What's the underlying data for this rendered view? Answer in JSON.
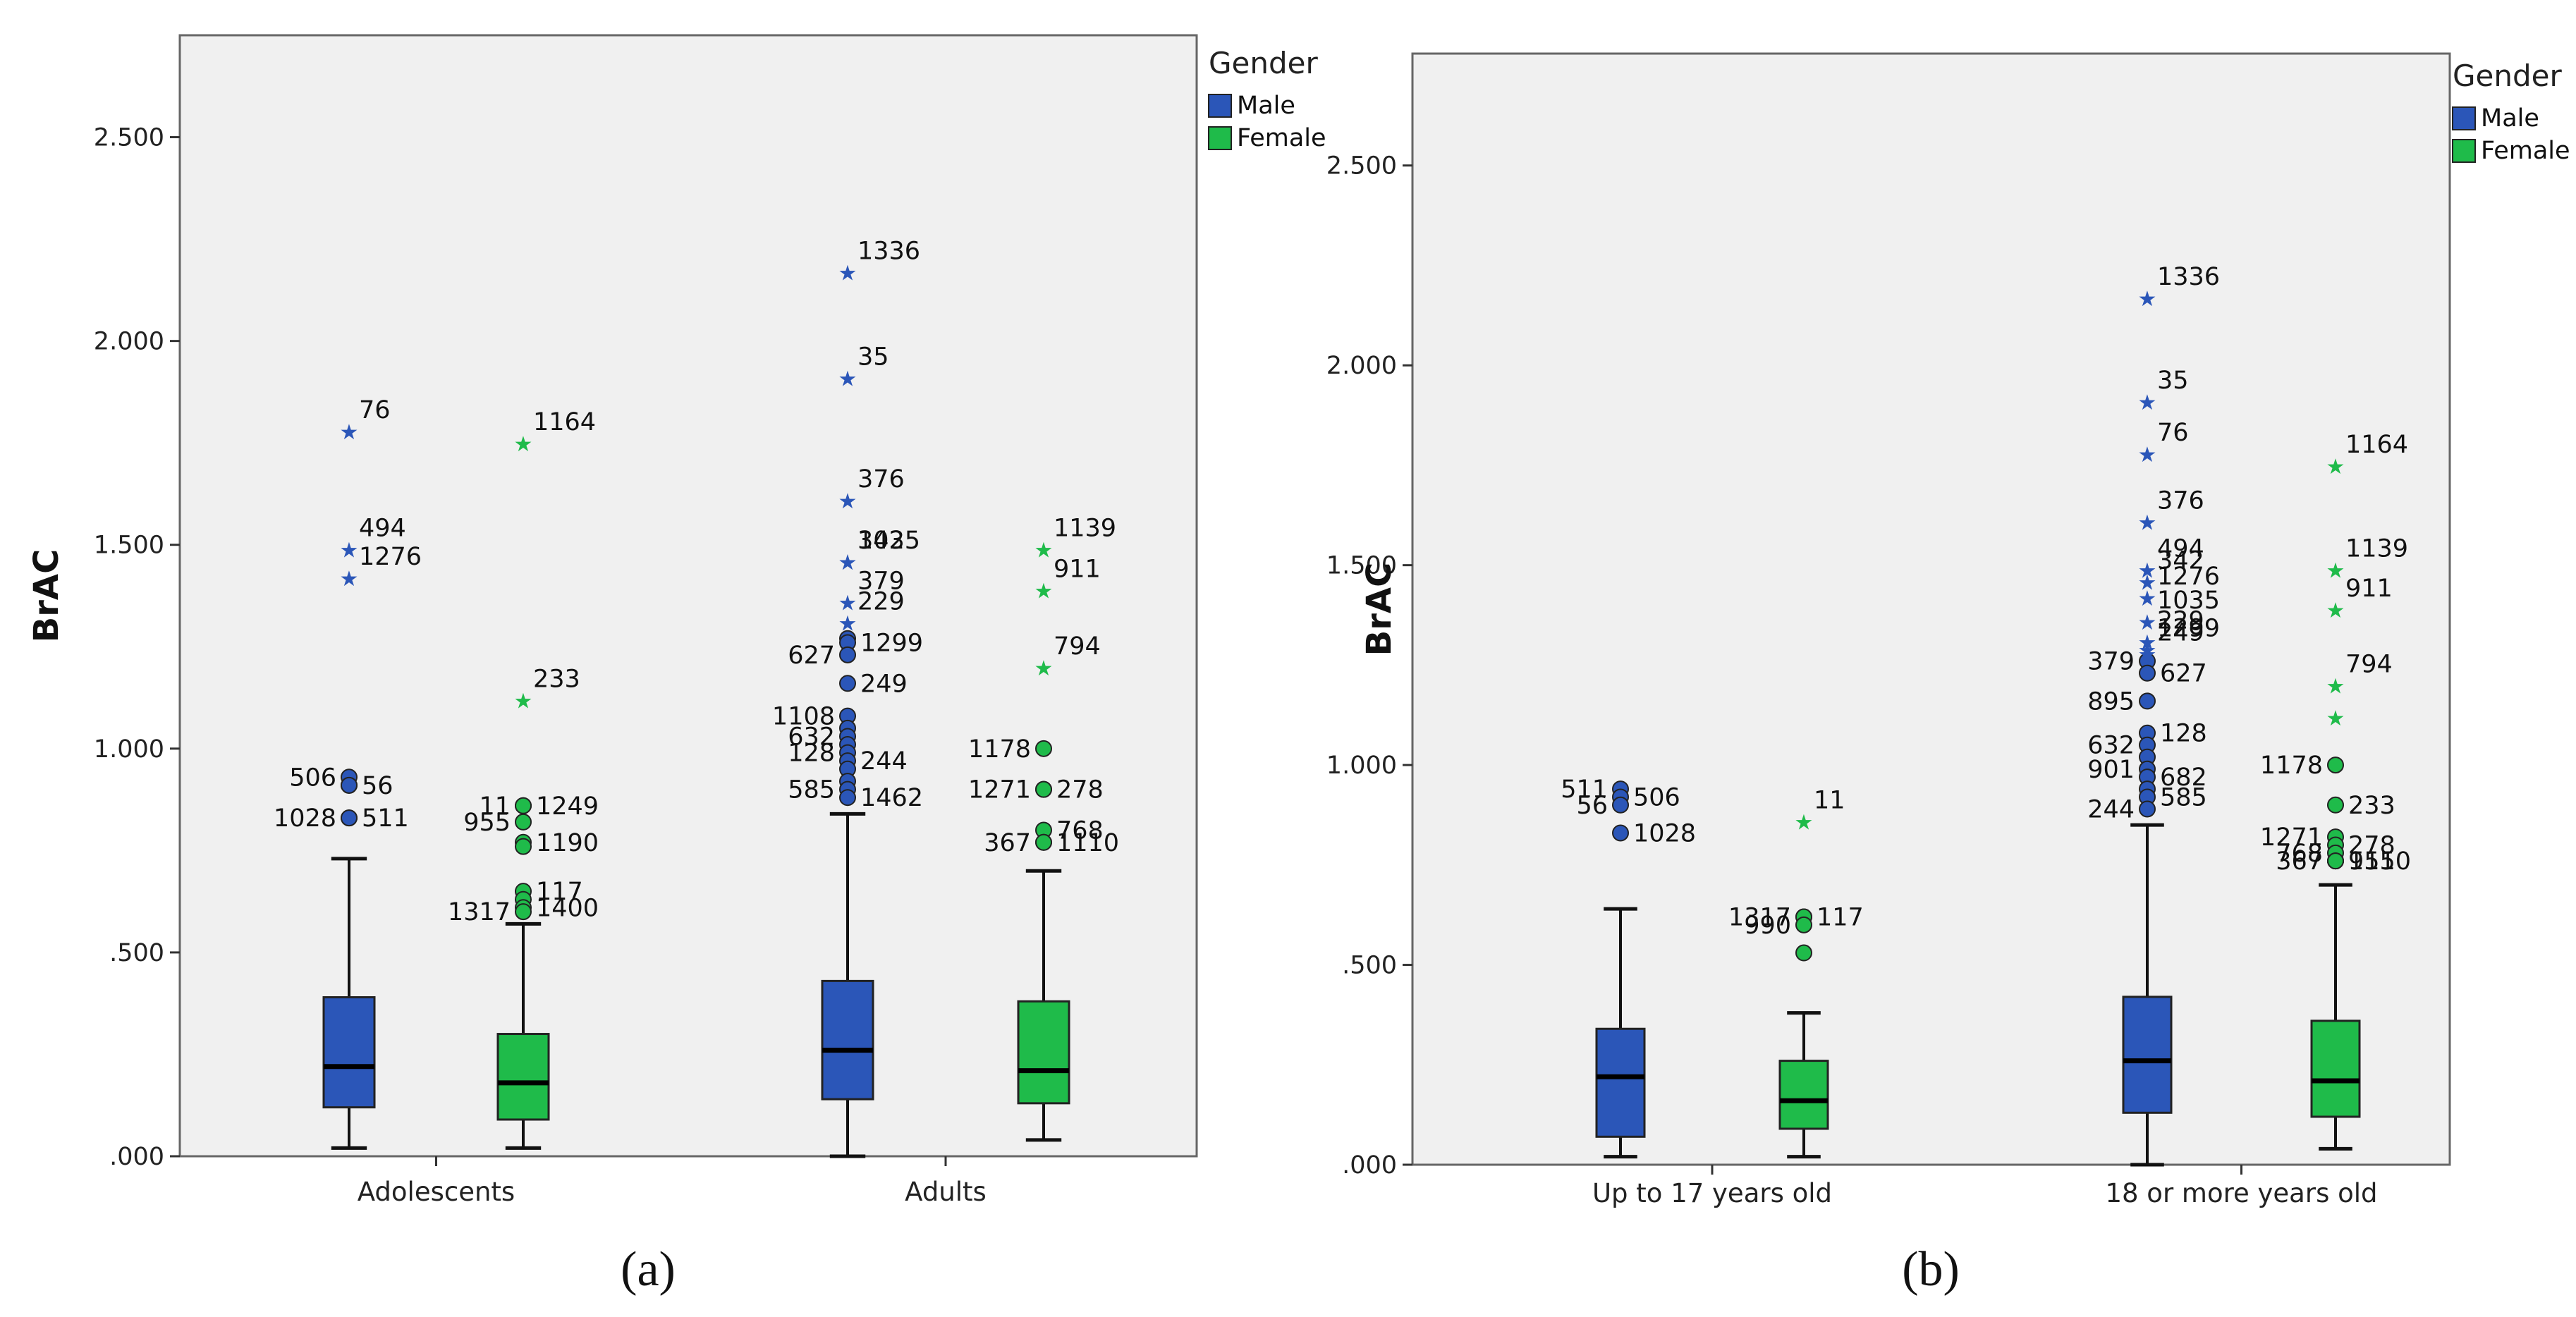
{
  "colors": {
    "male": "#2b56b8",
    "female": "#1fbb4a",
    "plot_bg": "#f0f0f0",
    "frame": "#666666"
  },
  "chart_data": [
    {
      "type": "boxplot",
      "panel_label": "(a)",
      "ylabel": "BrAC",
      "ylim": [
        0,
        2.75
      ],
      "yticks": [
        0,
        0.5,
        1.0,
        1.5,
        2.0,
        2.5
      ],
      "ytick_labels": [
        ".000",
        ".500",
        "1.000",
        "1.500",
        "2.000",
        "2.500"
      ],
      "categories": [
        "Adolescents",
        "Adults"
      ],
      "legend": {
        "title": "Gender",
        "position": "right",
        "entries": [
          "Male",
          "Female"
        ]
      },
      "series": [
        {
          "name": "Male",
          "boxes": [
            {
              "whisker_low": 0.02,
              "q1": 0.12,
              "median": 0.22,
              "q3": 0.39,
              "whisker_high": 0.73,
              "outliers": [
                {
                  "v": 0.93,
                  "label": "506"
                },
                {
                  "v": 0.91,
                  "label": "56"
                },
                {
                  "v": 0.91,
                  "label": ""
                },
                {
                  "v": 0.83,
                  "label": "511"
                },
                {
                  "v": 0.83,
                  "label": "1028"
                }
              ],
              "extremes": [
                {
                  "v": 1.78,
                  "label": "76"
                },
                {
                  "v": 1.49,
                  "label": "494"
                },
                {
                  "v": 1.42,
                  "label": "1276"
                }
              ]
            },
            {
              "whisker_low": 0.0,
              "q1": 0.14,
              "median": 0.26,
              "q3": 0.43,
              "whisker_high": 0.84,
              "outliers": [
                {
                  "v": 1.27,
                  "label": ""
                },
                {
                  "v": 1.26,
                  "label": "1299"
                },
                {
                  "v": 1.23,
                  "label": "627"
                },
                {
                  "v": 1.16,
                  "label": "249"
                },
                {
                  "v": 1.08,
                  "label": "1108"
                },
                {
                  "v": 1.05,
                  "label": ""
                },
                {
                  "v": 1.03,
                  "label": "632"
                },
                {
                  "v": 1.01,
                  "label": ""
                },
                {
                  "v": 0.99,
                  "label": "128"
                },
                {
                  "v": 0.97,
                  "label": "244"
                },
                {
                  "v": 0.95,
                  "label": ""
                },
                {
                  "v": 0.92,
                  "label": ""
                },
                {
                  "v": 0.9,
                  "label": "585"
                },
                {
                  "v": 0.88,
                  "label": "1462"
                }
              ],
              "extremes": [
                {
                  "v": 2.17,
                  "label": "1336"
                },
                {
                  "v": 1.91,
                  "label": "35"
                },
                {
                  "v": 1.61,
                  "label": "376"
                },
                {
                  "v": 1.46,
                  "label": "1035"
                },
                {
                  "v": 1.46,
                  "label": "342"
                },
                {
                  "v": 1.36,
                  "label": "379"
                },
                {
                  "v": 1.31,
                  "label": "229"
                }
              ]
            }
          ]
        },
        {
          "name": "Female",
          "boxes": [
            {
              "whisker_low": 0.02,
              "q1": 0.09,
              "median": 0.18,
              "q3": 0.3,
              "whisker_high": 0.57,
              "outliers": [
                {
                  "v": 0.86,
                  "label": "11"
                },
                {
                  "v": 0.86,
                  "label": "1249"
                },
                {
                  "v": 0.82,
                  "label": "955"
                },
                {
                  "v": 0.77,
                  "label": "1190"
                },
                {
                  "v": 0.76,
                  "label": ""
                },
                {
                  "v": 0.65,
                  "label": "117"
                },
                {
                  "v": 0.63,
                  "label": ""
                },
                {
                  "v": 0.61,
                  "label": "1400"
                },
                {
                  "v": 0.6,
                  "label": "1317"
                }
              ],
              "extremes": [
                {
                  "v": 1.75,
                  "label": "1164"
                },
                {
                  "v": 1.12,
                  "label": "233"
                }
              ]
            },
            {
              "whisker_low": 0.04,
              "q1": 0.13,
              "median": 0.21,
              "q3": 0.38,
              "whisker_high": 0.7,
              "outliers": [
                {
                  "v": 1.0,
                  "label": "1178"
                },
                {
                  "v": 0.9,
                  "label": "278"
                },
                {
                  "v": 0.9,
                  "label": "1271"
                },
                {
                  "v": 0.8,
                  "label": "768"
                },
                {
                  "v": 0.77,
                  "label": "367"
                },
                {
                  "v": 0.77,
                  "label": "1110"
                }
              ],
              "extremes": [
                {
                  "v": 1.49,
                  "label": "1139"
                },
                {
                  "v": 1.39,
                  "label": "911"
                },
                {
                  "v": 1.2,
                  "label": "794"
                }
              ]
            }
          ]
        }
      ]
    },
    {
      "type": "boxplot",
      "panel_label": "(b)",
      "ylabel": "BrAC",
      "ylim": [
        0,
        2.78
      ],
      "yticks": [
        0,
        0.5,
        1.0,
        1.5,
        2.0,
        2.5
      ],
      "ytick_labels": [
        ".000",
        ".500",
        "1.000",
        "1.500",
        "2.000",
        "2.500"
      ],
      "categories": [
        "Up to 17 years old",
        "18 or more years old"
      ],
      "legend": {
        "title": "Gender",
        "position": "right",
        "entries": [
          "Male",
          "Female"
        ]
      },
      "series": [
        {
          "name": "Male",
          "boxes": [
            {
              "whisker_low": 0.02,
              "q1": 0.07,
              "median": 0.22,
              "q3": 0.34,
              "whisker_high": 0.64,
              "outliers": [
                {
                  "v": 0.94,
                  "label": "511"
                },
                {
                  "v": 0.92,
                  "label": "506"
                },
                {
                  "v": 0.9,
                  "label": "56"
                },
                {
                  "v": 0.83,
                  "label": "1028"
                }
              ],
              "extremes": []
            },
            {
              "whisker_low": 0.0,
              "q1": 0.13,
              "median": 0.26,
              "q3": 0.42,
              "whisker_high": 0.85,
              "outliers": [
                {
                  "v": 1.26,
                  "label": "379"
                },
                {
                  "v": 1.23,
                  "label": "627"
                },
                {
                  "v": 1.16,
                  "label": "895"
                },
                {
                  "v": 1.08,
                  "label": "128"
                },
                {
                  "v": 1.05,
                  "label": "632"
                },
                {
                  "v": 1.02,
                  "label": ""
                },
                {
                  "v": 0.99,
                  "label": "901"
                },
                {
                  "v": 0.97,
                  "label": "682"
                },
                {
                  "v": 0.94,
                  "label": ""
                },
                {
                  "v": 0.92,
                  "label": "585"
                },
                {
                  "v": 0.89,
                  "label": "244"
                }
              ],
              "extremes": [
                {
                  "v": 2.17,
                  "label": "1336"
                },
                {
                  "v": 1.91,
                  "label": "35"
                },
                {
                  "v": 1.78,
                  "label": "76"
                },
                {
                  "v": 1.61,
                  "label": "376"
                },
                {
                  "v": 1.49,
                  "label": "494"
                },
                {
                  "v": 1.46,
                  "label": "342"
                },
                {
                  "v": 1.42,
                  "label": "1276"
                },
                {
                  "v": 1.36,
                  "label": "1035"
                },
                {
                  "v": 1.31,
                  "label": "229"
                },
                {
                  "v": 1.29,
                  "label": "1299"
                },
                {
                  "v": 1.28,
                  "label": "249"
                }
              ]
            }
          ]
        },
        {
          "name": "Female",
          "boxes": [
            {
              "whisker_low": 0.02,
              "q1": 0.09,
              "median": 0.16,
              "q3": 0.26,
              "whisker_high": 0.38,
              "outliers": [
                {
                  "v": 0.62,
                  "label": "1317"
                },
                {
                  "v": 0.62,
                  "label": "117"
                },
                {
                  "v": 0.6,
                  "label": "990"
                },
                {
                  "v": 0.53,
                  "label": ""
                }
              ],
              "extremes": [
                {
                  "v": 0.86,
                  "label": "11"
                }
              ]
            },
            {
              "whisker_low": 0.04,
              "q1": 0.12,
              "median": 0.21,
              "q3": 0.36,
              "whisker_high": 0.7,
              "outliers": [
                {
                  "v": 1.0,
                  "label": "1178"
                },
                {
                  "v": 0.9,
                  "label": "233"
                },
                {
                  "v": 0.82,
                  "label": "1271"
                },
                {
                  "v": 0.8,
                  "label": "278"
                },
                {
                  "v": 0.78,
                  "label": "768"
                },
                {
                  "v": 0.76,
                  "label": "1110"
                },
                {
                  "v": 0.76,
                  "label": "367"
                },
                {
                  "v": 0.76,
                  "label": "955"
                }
              ],
              "extremes": [
                {
                  "v": 1.75,
                  "label": "1164"
                },
                {
                  "v": 1.49,
                  "label": "1139"
                },
                {
                  "v": 1.39,
                  "label": "911"
                },
                {
                  "v": 1.2,
                  "label": "794"
                },
                {
                  "v": 1.12,
                  "label": ""
                }
              ]
            }
          ]
        }
      ]
    }
  ]
}
